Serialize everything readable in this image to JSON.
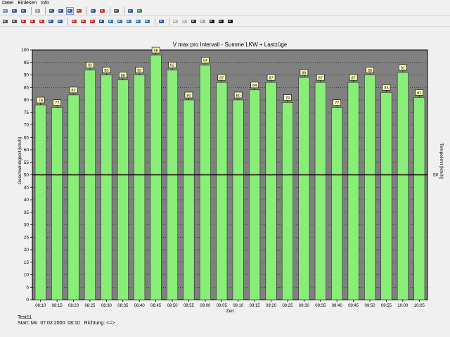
{
  "menu": [
    "Datei",
    "Einlesen",
    "Info"
  ],
  "toolbar1": [
    {
      "icon": "new-doc-icon",
      "color": "#6a8fcf"
    },
    {
      "icon": "save-icon",
      "color": "#2f5aa8"
    },
    {
      "icon": "save-as-icon",
      "color": "#2f5aa8"
    },
    {
      "sep": true
    },
    {
      "icon": "filter-icon",
      "color": "#999999"
    },
    {
      "sep": true
    },
    {
      "icon": "windows-icon",
      "color": "#2f5aa8"
    },
    {
      "icon": "table-icon",
      "color": "#2f5aa8"
    },
    {
      "icon": "bar-chart-icon",
      "color": "#2f5aa8",
      "pressed": true
    },
    {
      "icon": "chart-edit-icon",
      "color": "#c0392b"
    },
    {
      "sep": true
    },
    {
      "icon": "clock-icon",
      "color": "#2f5aa8"
    },
    {
      "icon": "cancel-icon",
      "color": "#d03030"
    },
    {
      "sep": true
    },
    {
      "icon": "print-icon",
      "color": "#555555"
    },
    {
      "sep": true
    },
    {
      "icon": "info-icon",
      "color": "#2f5aa8"
    },
    {
      "icon": "globe-icon",
      "color": "#2e8b57"
    }
  ],
  "toolbar2": [
    {
      "icon": "vehicle-all-icon",
      "color": "#555555"
    },
    {
      "icon": "vehicle-list-icon",
      "color": "#555555"
    },
    {
      "icon": "car-icon",
      "color": "#d03030"
    },
    {
      "icon": "van-icon",
      "color": "#d03030"
    },
    {
      "icon": "car-small-icon",
      "color": "#d03030"
    },
    {
      "icon": "truck-icon",
      "color": "#2f5aa8"
    },
    {
      "icon": "bus-icon",
      "color": "#2f5aa8"
    },
    {
      "sep": true
    },
    {
      "icon": "car-red-icon",
      "color": "#d03030"
    },
    {
      "icon": "car-red2-icon",
      "color": "#d03030"
    },
    {
      "icon": "truck-red-icon",
      "color": "#d03030"
    },
    {
      "icon": "trailer-icon",
      "color": "#2f5aa8"
    },
    {
      "icon": "stat-v1-icon",
      "color": "#2f7fc0"
    },
    {
      "icon": "stat-v2-icon",
      "color": "#2f7fc0"
    },
    {
      "icon": "stat-v3-icon",
      "color": "#2f7fc0"
    },
    {
      "icon": "stat-v4-icon",
      "color": "#2f7fc0"
    },
    {
      "icon": "stat-v5-icon",
      "color": "#2f7fc0"
    },
    {
      "sep": true
    },
    {
      "icon": "direction-icon",
      "color": "#2f5aa8"
    },
    {
      "sep": true
    },
    {
      "icon": "zoom-in-icon",
      "color": "#bbbbbb"
    },
    {
      "icon": "zoom-out-icon",
      "color": "#bbbbbb"
    },
    {
      "icon": "prev-icon",
      "color": "#333333"
    },
    {
      "icon": "back-icon",
      "color": "#aaaaaa"
    },
    {
      "icon": "play-icon",
      "color": "#111111"
    },
    {
      "icon": "next-icon",
      "color": "#111111"
    },
    {
      "icon": "last-icon",
      "color": "#111111"
    }
  ],
  "chart_data": {
    "type": "bar",
    "title": "V max pro Intervall - Summe LKW + Lastzüge",
    "xlabel": "Zeit",
    "ylabel": "Geschwindigkeit [km/h]",
    "ylabel_right": "Tempolimit [km/h]",
    "ylim": [
      0,
      100
    ],
    "yticks": [
      0,
      5,
      10,
      15,
      20,
      25,
      30,
      35,
      40,
      45,
      50,
      55,
      60,
      65,
      70,
      75,
      80,
      85,
      90,
      95,
      100
    ],
    "categories": [
      "08:10",
      "08:15",
      "08:20",
      "08:25",
      "08:30",
      "08:35",
      "08:40",
      "08:45",
      "08:50",
      "08:55",
      "09:00",
      "09:05",
      "09:10",
      "09:15",
      "09:20",
      "09:25",
      "09:30",
      "09:35",
      "09:40",
      "09:45",
      "09:50",
      "09:55",
      "10:00",
      "10:05"
    ],
    "values": [
      78,
      77,
      82,
      92,
      90,
      88,
      90,
      98,
      92,
      80,
      94,
      87,
      80,
      84,
      87,
      79,
      89,
      87,
      77,
      87,
      90,
      83,
      91,
      81
    ],
    "limit": 50,
    "limit_label": "50",
    "colors": {
      "bar": "#88ee77",
      "plot_bg": "#808080",
      "limit_line": "#000000",
      "label_bg": "#ffffbb"
    }
  },
  "status": {
    "name": "Test11",
    "start_label": "Start:",
    "weekday": "Mo",
    "date": "07.02.2000",
    "time": "08:10",
    "richtung_label": "Richtung:",
    "richtung": "<=>"
  }
}
